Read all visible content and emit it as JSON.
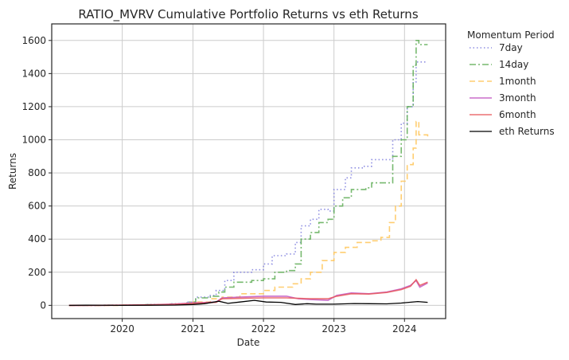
{
  "chart_data": {
    "type": "line",
    "title": "RATIO_MVRV Cumulative Portfolio Returns vs eth Returns",
    "xlabel": "Date",
    "ylabel": "Returns",
    "xlim": [
      "2019-01-01",
      "2024-08-01"
    ],
    "ylim": [
      -80,
      1700
    ],
    "x_ticks": [
      "2020",
      "2021",
      "2022",
      "2023",
      "2024"
    ],
    "y_ticks": [
      0,
      200,
      400,
      600,
      800,
      1000,
      1200,
      1400,
      1600
    ],
    "grid": true,
    "legend": {
      "title": "Momentum Period",
      "placement": "outside-right"
    },
    "series": [
      {
        "name": "7day",
        "color": "#7b7bdd",
        "dash": "dotted",
        "points": [
          [
            "2019-04-01",
            0
          ],
          [
            "2019-10-01",
            1
          ],
          [
            "2020-01-01",
            2
          ],
          [
            "2020-05-01",
            5
          ],
          [
            "2020-09-01",
            10
          ],
          [
            "2020-12-01",
            20
          ],
          [
            "2021-01-15",
            50
          ],
          [
            "2021-04-01",
            60
          ],
          [
            "2021-05-01",
            90
          ],
          [
            "2021-06-15",
            150
          ],
          [
            "2021-08-01",
            200
          ],
          [
            "2021-11-01",
            215
          ],
          [
            "2022-01-01",
            250
          ],
          [
            "2022-02-15",
            300
          ],
          [
            "2022-05-01",
            310
          ],
          [
            "2022-06-15",
            380
          ],
          [
            "2022-07-15",
            480
          ],
          [
            "2022-09-01",
            520
          ],
          [
            "2022-10-15",
            580
          ],
          [
            "2022-12-01",
            570
          ],
          [
            "2023-01-01",
            700
          ],
          [
            "2023-03-01",
            770
          ],
          [
            "2023-04-01",
            830
          ],
          [
            "2023-06-01",
            840
          ],
          [
            "2023-07-15",
            880
          ],
          [
            "2023-10-15",
            880
          ],
          [
            "2023-11-01",
            1000
          ],
          [
            "2023-12-15",
            1100
          ],
          [
            "2024-01-15",
            1200
          ],
          [
            "2024-02-15",
            1350
          ],
          [
            "2024-03-01",
            1470
          ],
          [
            "2024-04-30",
            1470
          ]
        ]
      },
      {
        "name": "14day",
        "color": "#5fad56",
        "dash": "dashdot",
        "points": [
          [
            "2019-04-01",
            0
          ],
          [
            "2019-10-01",
            1
          ],
          [
            "2020-01-01",
            2
          ],
          [
            "2020-05-01",
            4
          ],
          [
            "2020-09-01",
            8
          ],
          [
            "2020-12-01",
            20
          ],
          [
            "2021-01-15",
            45
          ],
          [
            "2021-04-01",
            55
          ],
          [
            "2021-05-15",
            80
          ],
          [
            "2021-06-15",
            110
          ],
          [
            "2021-08-01",
            140
          ],
          [
            "2021-11-01",
            150
          ],
          [
            "2022-01-01",
            160
          ],
          [
            "2022-03-01",
            200
          ],
          [
            "2022-05-01",
            210
          ],
          [
            "2022-06-15",
            250
          ],
          [
            "2022-07-15",
            400
          ],
          [
            "2022-09-01",
            440
          ],
          [
            "2022-10-15",
            500
          ],
          [
            "2022-12-01",
            520
          ],
          [
            "2023-01-01",
            600
          ],
          [
            "2023-02-15",
            650
          ],
          [
            "2023-04-01",
            700
          ],
          [
            "2023-06-15",
            710
          ],
          [
            "2023-07-15",
            740
          ],
          [
            "2023-10-15",
            740
          ],
          [
            "2023-11-01",
            900
          ],
          [
            "2023-12-15",
            1000
          ],
          [
            "2024-01-15",
            1200
          ],
          [
            "2024-02-15",
            1450
          ],
          [
            "2024-03-01",
            1600
          ],
          [
            "2024-03-15",
            1575
          ],
          [
            "2024-04-30",
            1575
          ]
        ]
      },
      {
        "name": "1month",
        "color": "#ffc658",
        "dash": "dashed",
        "points": [
          [
            "2019-04-01",
            0
          ],
          [
            "2020-01-01",
            1
          ],
          [
            "2020-06-01",
            3
          ],
          [
            "2020-10-01",
            8
          ],
          [
            "2021-01-01",
            20
          ],
          [
            "2021-04-01",
            40
          ],
          [
            "2021-06-01",
            50
          ],
          [
            "2021-09-01",
            70
          ],
          [
            "2022-01-01",
            90
          ],
          [
            "2022-03-01",
            110
          ],
          [
            "2022-06-01",
            130
          ],
          [
            "2022-07-15",
            160
          ],
          [
            "2022-09-01",
            200
          ],
          [
            "2022-11-01",
            270
          ],
          [
            "2023-01-01",
            320
          ],
          [
            "2023-03-01",
            350
          ],
          [
            "2023-05-01",
            380
          ],
          [
            "2023-07-15",
            390
          ],
          [
            "2023-09-01",
            410
          ],
          [
            "2023-10-15",
            500
          ],
          [
            "2023-11-15",
            600
          ],
          [
            "2023-12-15",
            750
          ],
          [
            "2024-01-15",
            850
          ],
          [
            "2024-02-15",
            950
          ],
          [
            "2024-03-01",
            1110
          ],
          [
            "2024-03-15",
            1030
          ],
          [
            "2024-04-30",
            1020
          ]
        ]
      },
      {
        "name": "3month",
        "color": "#c154c1",
        "dash": "solid",
        "points": [
          [
            "2019-04-01",
            0
          ],
          [
            "2020-01-01",
            1
          ],
          [
            "2020-06-01",
            3
          ],
          [
            "2020-10-01",
            8
          ],
          [
            "2021-01-01",
            15
          ],
          [
            "2021-05-01",
            20
          ],
          [
            "2021-06-01",
            45
          ],
          [
            "2021-09-01",
            50
          ],
          [
            "2022-01-01",
            55
          ],
          [
            "2022-05-01",
            55
          ],
          [
            "2022-07-01",
            40
          ],
          [
            "2022-09-01",
            35
          ],
          [
            "2022-12-01",
            30
          ],
          [
            "2023-01-15",
            60
          ],
          [
            "2023-04-01",
            75
          ],
          [
            "2023-07-01",
            70
          ],
          [
            "2023-10-01",
            80
          ],
          [
            "2023-12-15",
            100
          ],
          [
            "2024-02-01",
            120
          ],
          [
            "2024-03-01",
            150
          ],
          [
            "2024-03-20",
            110
          ],
          [
            "2024-04-30",
            135
          ]
        ]
      },
      {
        "name": "6month",
        "color": "#e8575a",
        "dash": "solid",
        "points": [
          [
            "2019-04-01",
            0
          ],
          [
            "2020-01-01",
            1
          ],
          [
            "2020-06-01",
            3
          ],
          [
            "2020-10-01",
            6
          ],
          [
            "2021-01-01",
            12
          ],
          [
            "2021-05-01",
            18
          ],
          [
            "2021-06-01",
            40
          ],
          [
            "2021-09-01",
            42
          ],
          [
            "2022-01-01",
            45
          ],
          [
            "2022-05-01",
            45
          ],
          [
            "2022-07-01",
            42
          ],
          [
            "2022-09-01",
            40
          ],
          [
            "2022-12-01",
            40
          ],
          [
            "2023-01-15",
            55
          ],
          [
            "2023-04-01",
            70
          ],
          [
            "2023-07-01",
            68
          ],
          [
            "2023-10-01",
            78
          ],
          [
            "2023-12-15",
            95
          ],
          [
            "2024-02-01",
            115
          ],
          [
            "2024-03-01",
            155
          ],
          [
            "2024-03-20",
            120
          ],
          [
            "2024-04-30",
            140
          ]
        ]
      },
      {
        "name": "eth Returns",
        "color": "#000000",
        "dash": "solid",
        "points": [
          [
            "2019-04-01",
            0
          ],
          [
            "2019-07-01",
            1
          ],
          [
            "2020-01-01",
            0
          ],
          [
            "2020-06-01",
            1
          ],
          [
            "2020-10-01",
            2
          ],
          [
            "2021-01-01",
            5
          ],
          [
            "2021-03-01",
            10
          ],
          [
            "2021-05-15",
            25
          ],
          [
            "2021-07-01",
            12
          ],
          [
            "2021-09-01",
            20
          ],
          [
            "2021-11-15",
            30
          ],
          [
            "2022-01-15",
            20
          ],
          [
            "2022-04-01",
            18
          ],
          [
            "2022-06-15",
            5
          ],
          [
            "2022-08-15",
            10
          ],
          [
            "2022-10-01",
            7
          ],
          [
            "2023-01-01",
            7
          ],
          [
            "2023-04-15",
            11
          ],
          [
            "2023-07-01",
            10
          ],
          [
            "2023-10-01",
            9
          ],
          [
            "2023-12-15",
            14
          ],
          [
            "2024-03-10",
            23
          ],
          [
            "2024-04-30",
            18
          ]
        ]
      }
    ]
  }
}
